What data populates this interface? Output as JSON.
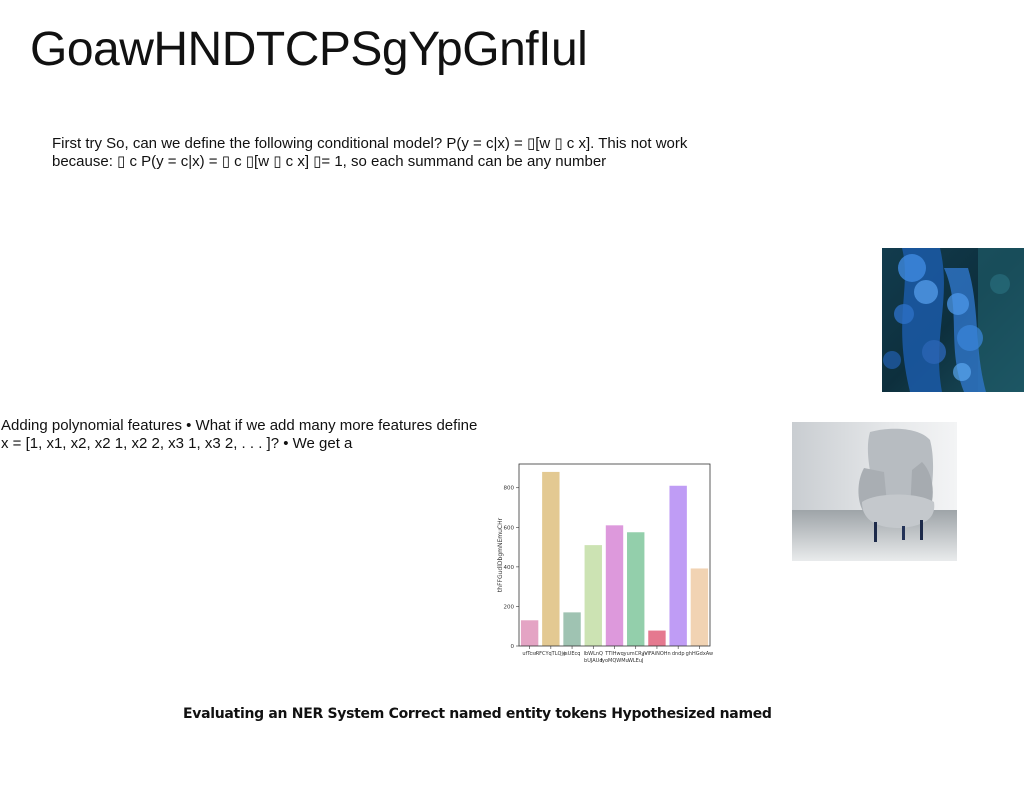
{
  "title": "GoawHNDTCPSgYpGnfIul",
  "paragraphs": {
    "first": "First try So, can we define the following conditional model? P(y = c|x) = ▯[w ▯ c x]. This not work because: ▯ c P(y = c|x) = ▯ c ▯[w ▯ c x] ▯= 1, so each summand can be any number",
    "second": "Adding polynomial features • What if we add many more features define x = [1, x1, x2, x2 1, x2 2, x3 1, x3 2, . . . ]? • We get a"
  },
  "footer": "Evaluating an NER System Correct named entity tokens Hypothesized named",
  "images": {
    "blue_texture": "blue-textured-foliage-photo",
    "chair": "grey-armchair-photo"
  },
  "chart_data": {
    "type": "bar",
    "ylabel": "thFFGudlDbgmNEmuCHr",
    "xlabel": "",
    "ylim": [
      0,
      920
    ],
    "yticks": [
      0,
      200,
      400,
      600,
      800
    ],
    "categories": [
      "ufTcsr",
      "RFCYqTLQje",
      "jsUEcq",
      "lbWLnQ",
      "TTIHwq",
      "yumCRyV",
      "jvlFAiNOHn",
      "dndp",
      "ghHGdxAw"
    ],
    "category_labels_second_line": [
      "",
      "",
      "",
      "bUJAUd",
      "fyoMQWMu",
      "WLEuJ",
      "",
      "",
      ""
    ],
    "values": [
      130,
      880,
      170,
      510,
      610,
      575,
      78,
      810,
      392
    ],
    "colors": [
      "#e4a4c4",
      "#e3c992",
      "#9fc3b2",
      "#cce3b3",
      "#dd99dc",
      "#93cfab",
      "#e5798f",
      "#bf9cf5",
      "#f1d3b3"
    ]
  }
}
